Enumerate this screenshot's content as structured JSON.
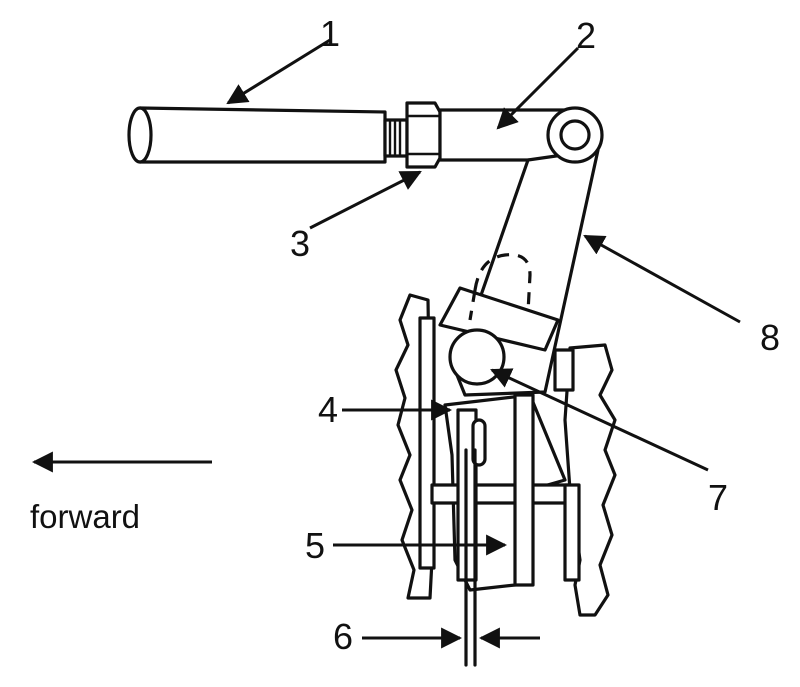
{
  "labels": {
    "n1": "1",
    "n2": "2",
    "n3": "3",
    "n4": "4",
    "n5": "5",
    "n6": "6",
    "n7": "7",
    "n8": "8"
  },
  "direction": {
    "text": "forward"
  }
}
